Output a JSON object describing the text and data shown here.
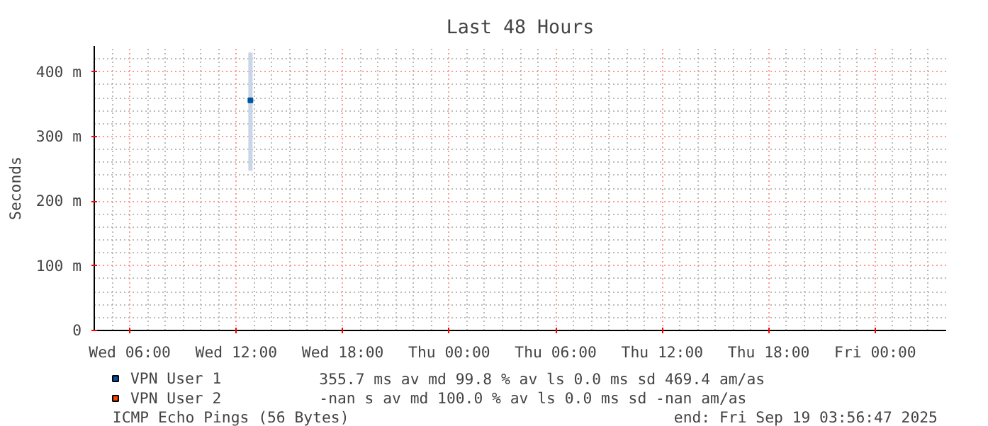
{
  "chart_data": {
    "type": "scatter",
    "title": "Last 48 Hours",
    "ylabel": "Seconds",
    "xlim": [
      "2025-09-17T04:00",
      "2025-09-19T04:00"
    ],
    "xticks": [
      {
        "value": "2025-09-17T06:00",
        "label": "Wed 06:00"
      },
      {
        "value": "2025-09-17T12:00",
        "label": "Wed 12:00"
      },
      {
        "value": "2025-09-17T18:00",
        "label": "Wed 18:00"
      },
      {
        "value": "2025-09-18T00:00",
        "label": "Thu 00:00"
      },
      {
        "value": "2025-09-18T06:00",
        "label": "Thu 06:00"
      },
      {
        "value": "2025-09-18T12:00",
        "label": "Thu 12:00"
      },
      {
        "value": "2025-09-18T18:00",
        "label": "Thu 18:00"
      },
      {
        "value": "2025-09-19T00:00",
        "label": "Fri 00:00"
      }
    ],
    "ylim": [
      0,
      440
    ],
    "yticks": [
      0,
      {
        "value": 100,
        "label": "100 m"
      },
      {
        "value": 200,
        "label": "200 m"
      },
      {
        "value": 300,
        "label": "300 m"
      },
      {
        "value": 400,
        "label": "400 m"
      }
    ],
    "grid": true,
    "legend": "bottom",
    "marker": "square",
    "x": [
      "2025-09-17T12:48"
    ],
    "series": [
      {
        "name": "VPN User 1",
        "color": "#0055a5",
        "values": [
          356
        ],
        "errors": [
          [
            247,
            430
          ]
        ]
      },
      {
        "name": "VPN User 2",
        "color": "#ff4400",
        "values": [
          null
        ]
      }
    ],
    "annotations": [
      "355.7 ms av md    99.8 % av ls    0.0 ms sd  469.4   am/as",
      "  -nan  s av md   100.0 % av ls    0.0 ms sd   -nan   am/as",
      "ICMP Echo Pings (56 Bytes)",
      "end: Fri Sep 19 03:56:47 2025"
    ]
  }
}
